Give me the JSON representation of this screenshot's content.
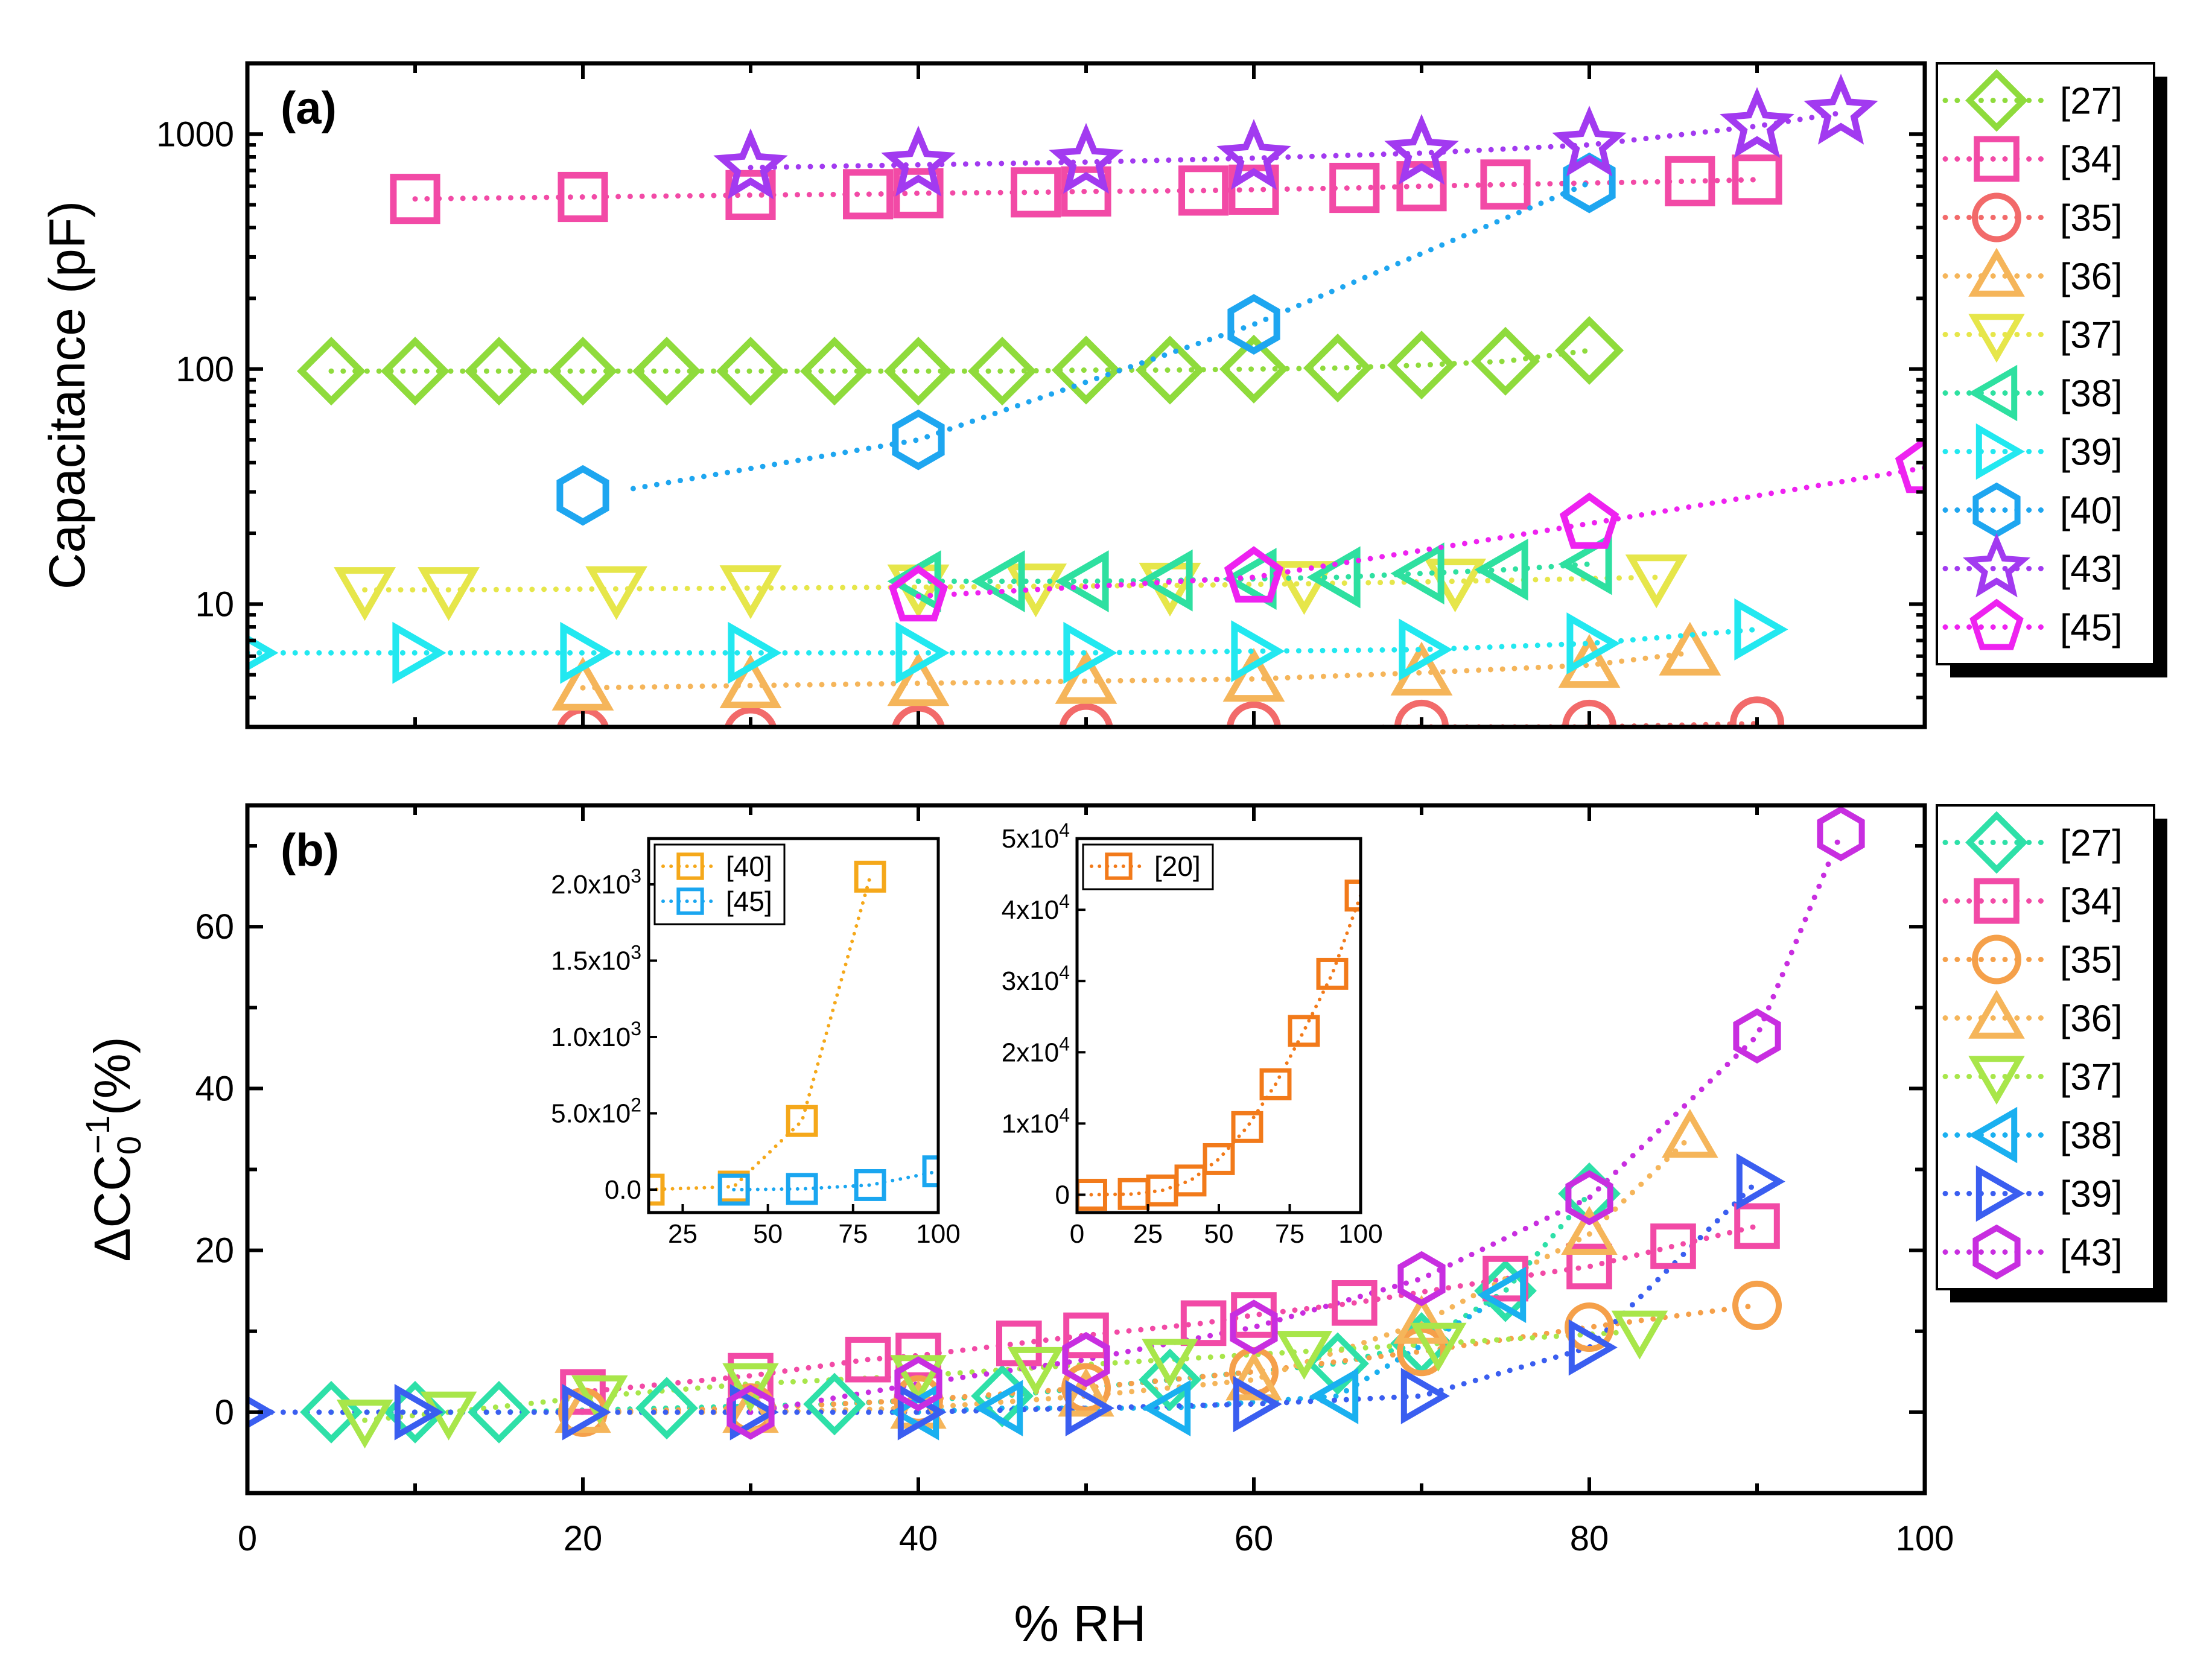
{
  "figure": {
    "xlabel": "% RH",
    "x_ticks": [
      "0",
      "20",
      "40",
      "60",
      "80",
      "100"
    ]
  },
  "chart_data": [
    {
      "type": "scatter",
      "panel": "(a)",
      "ylabel": "Capacitance (pF)",
      "yscale": "log",
      "xlim": [
        0,
        100
      ],
      "ylim": [
        3.0,
        2000
      ],
      "y_ticks": [
        {
          "value": 10,
          "label": "10"
        },
        {
          "value": 100,
          "label": "100"
        },
        {
          "value": 1000,
          "label": "1000"
        }
      ],
      "legend": [
        "[27]",
        "[34]",
        "[35]",
        "[36]",
        "[37]",
        "[38]",
        "[39]",
        "[40]",
        "[43]",
        "[45]"
      ],
      "series": [
        {
          "name": "[27]",
          "color": "#8fdb3c",
          "marker": "diamond",
          "x": [
            5,
            10,
            15,
            20,
            25,
            30,
            35,
            40,
            45,
            50,
            55,
            60,
            65,
            70,
            75,
            80
          ],
          "y": [
            98,
            98,
            98,
            98,
            98,
            98,
            98,
            98,
            98,
            99,
            99,
            100,
            101,
            104,
            108,
            120
          ]
        },
        {
          "name": "[34]",
          "color": "#f24aa6",
          "marker": "square",
          "x": [
            10,
            20,
            30,
            37,
            40,
            47,
            50,
            57,
            60,
            66,
            70,
            75,
            86,
            90
          ],
          "y": [
            530,
            540,
            550,
            555,
            560,
            565,
            570,
            575,
            580,
            590,
            600,
            610,
            630,
            640
          ]
        },
        {
          "name": "[35]",
          "color": "#f26a6a",
          "marker": "circle",
          "x": [
            20,
            30,
            40,
            50,
            60,
            70,
            80,
            90
          ],
          "y": [
            2.8,
            2.8,
            2.85,
            2.9,
            2.95,
            3.0,
            3.0,
            3.1
          ]
        },
        {
          "name": "[36]",
          "color": "#f5b55a",
          "marker": "triangle-up",
          "x": [
            20,
            30,
            40,
            50,
            60,
            70,
            80,
            86
          ],
          "y": [
            4.4,
            4.5,
            4.6,
            4.7,
            4.8,
            5.1,
            5.5,
            6.2
          ]
        },
        {
          "name": "[37]",
          "color": "#e6e64a",
          "marker": "triangle-down",
          "x": [
            7,
            12,
            22,
            30,
            40,
            47,
            55,
            63,
            72,
            84
          ],
          "y": [
            11.5,
            11.5,
            11.6,
            11.7,
            11.8,
            11.9,
            12.0,
            12.2,
            12.5,
            13.0
          ]
        },
        {
          "name": "[38]",
          "color": "#2ee0a0",
          "marker": "triangle-left",
          "x": [
            40,
            45,
            50,
            55,
            60,
            65,
            70,
            75,
            80
          ],
          "y": [
            12.5,
            12.5,
            12.5,
            12.6,
            12.8,
            13.0,
            13.5,
            14.0,
            14.8
          ]
        },
        {
          "name": "[39]",
          "color": "#22e8f0",
          "marker": "triangle-right",
          "x": [
            0,
            10,
            20,
            30,
            40,
            50,
            60,
            70,
            80,
            90
          ],
          "y": [
            6.2,
            6.2,
            6.2,
            6.2,
            6.2,
            6.2,
            6.3,
            6.4,
            6.8,
            7.8
          ]
        },
        {
          "name": "[40]",
          "color": "#1ea6f0",
          "marker": "hexagon",
          "x": [
            20,
            40,
            60,
            80
          ],
          "y": [
            29,
            50,
            155,
            620
          ]
        },
        {
          "name": "[43]",
          "color": "#a23af0",
          "marker": "star",
          "x": [
            30,
            40,
            50,
            60,
            70,
            80,
            90,
            95
          ],
          "y": [
            720,
            740,
            760,
            790,
            830,
            900,
            1080,
            1230
          ]
        },
        {
          "name": "[45]",
          "color": "#ee22f0",
          "marker": "pentagon",
          "x": [
            40,
            60,
            80,
            100
          ],
          "y": [
            10.8,
            13.0,
            22,
            38
          ]
        }
      ]
    },
    {
      "type": "scatter",
      "panel": "(b)",
      "ylabel_main": "ΔCC",
      "ylabel_sub": "0",
      "ylabel_sup": "−1",
      "ylabel_tail": "(%)",
      "xlim": [
        0,
        100
      ],
      "ylim": [
        -10,
        75
      ],
      "y_ticks": [
        {
          "value": 0,
          "label": "0"
        },
        {
          "value": 20,
          "label": "20"
        },
        {
          "value": 40,
          "label": "40"
        },
        {
          "value": 60,
          "label": "60"
        }
      ],
      "legend": [
        "[27]",
        "[34]",
        "[35]",
        "[36]",
        "[37]",
        "[38]",
        "[39]",
        "[43]"
      ],
      "series": [
        {
          "name": "[27]",
          "color": "#2ee0a8",
          "marker": "diamond",
          "x": [
            5,
            10,
            15,
            25,
            35,
            45,
            55,
            65,
            70,
            75,
            80
          ],
          "y": [
            0,
            0,
            0,
            0.5,
            1,
            2,
            4,
            6,
            8.5,
            15,
            27
          ]
        },
        {
          "name": "[34]",
          "color": "#f24aa6",
          "marker": "square",
          "x": [
            20,
            30,
            37,
            40,
            46,
            50,
            57,
            60,
            66,
            75,
            80,
            85,
            90
          ],
          "y": [
            2.5,
            4.5,
            6.5,
            7.0,
            8.5,
            9.5,
            11,
            12,
            13.5,
            16.5,
            18,
            20.5,
            23
          ]
        },
        {
          "name": "[35]",
          "color": "#f5a04a",
          "marker": "circle",
          "x": [
            20,
            30,
            40,
            50,
            60,
            70,
            80,
            90
          ],
          "y": [
            0,
            0.5,
            1.5,
            3,
            5,
            7.5,
            10.5,
            13.2
          ]
        },
        {
          "name": "[36]",
          "color": "#f5b55a",
          "marker": "triangle-up",
          "x": [
            20,
            30,
            40,
            50,
            60,
            70,
            80,
            86
          ],
          "y": [
            0,
            0,
            0.5,
            2,
            4,
            11,
            22,
            34
          ]
        },
        {
          "name": "[37]",
          "color": "#a8e64a",
          "marker": "triangle-down",
          "x": [
            7,
            12,
            21,
            30,
            40,
            47,
            55,
            63,
            71,
            83
          ],
          "y": [
            -1,
            0,
            2,
            3.5,
            4.5,
            5.5,
            6.5,
            7.5,
            8.5,
            10
          ]
        },
        {
          "name": "[38]",
          "color": "#1ab0f0",
          "marker": "triangle-left",
          "x": [
            40,
            45,
            55,
            65,
            75
          ],
          "y": [
            0,
            0.5,
            0.5,
            2,
            14.5
          ]
        },
        {
          "name": "[39]",
          "color": "#3a5ef0",
          "marker": "triangle-right",
          "x": [
            0,
            10,
            20,
            30,
            40,
            50,
            60,
            70,
            80,
            90
          ],
          "y": [
            0,
            0,
            0,
            0,
            0,
            0.5,
            1,
            2,
            8,
            28.5
          ]
        },
        {
          "name": "[43]",
          "color": "#c82ee0",
          "marker": "hexagon",
          "x": [
            30,
            40,
            50,
            60,
            70,
            80,
            90,
            95
          ],
          "y": [
            0,
            3.5,
            6.5,
            10.5,
            16.5,
            26.5,
            46.5,
            71.5
          ]
        }
      ]
    },
    {
      "type": "scatter",
      "panel": "inset-1",
      "xlim": [
        15,
        100
      ],
      "ylim": [
        -150,
        2300
      ],
      "x_ticks": [
        "25",
        "50",
        "75",
        "100"
      ],
      "y_ticks": [
        {
          "value": 0,
          "label": "0.0"
        },
        {
          "value": 500,
          "label": "5.0x10"
        },
        {
          "value": 1000,
          "label": "1.0x10"
        },
        {
          "value": 1500,
          "label": "1.5x10"
        },
        {
          "value": 2000,
          "label": "2.0x10"
        }
      ],
      "y_tick_exponents": [
        "",
        "2",
        "3",
        "3",
        "3"
      ],
      "legend": [
        "[40]",
        "[45]"
      ],
      "series": [
        {
          "name": "[40]",
          "color": "#f5a81a",
          "marker": "square",
          "x": [
            15,
            40,
            60,
            80
          ],
          "y": [
            0,
            20,
            450,
            2050
          ]
        },
        {
          "name": "[45]",
          "color": "#1aa6f0",
          "marker": "square",
          "x": [
            40,
            60,
            80,
            100
          ],
          "y": [
            0,
            5,
            30,
            120
          ]
        }
      ]
    },
    {
      "type": "scatter",
      "panel": "inset-2",
      "xlim": [
        0,
        100
      ],
      "ylim": [
        -2500,
        50000
      ],
      "x_ticks": [
        "0",
        "25",
        "50",
        "75",
        "100"
      ],
      "y_ticks": [
        {
          "value": 0,
          "label": "0"
        },
        {
          "value": 10000,
          "label": "1x10"
        },
        {
          "value": 20000,
          "label": "2x10"
        },
        {
          "value": 30000,
          "label": "3x10"
        },
        {
          "value": 40000,
          "label": "4x10"
        },
        {
          "value": 50000,
          "label": "5x10"
        }
      ],
      "y_tick_exponents": [
        "",
        "4",
        "4",
        "4",
        "4",
        "4"
      ],
      "legend": [
        "[20]"
      ],
      "series": [
        {
          "name": "[20]",
          "color": "#f27a1a",
          "marker": "square",
          "x": [
            5,
            20,
            30,
            40,
            50,
            60,
            70,
            80,
            90,
            100
          ],
          "y": [
            0,
            100,
            600,
            2000,
            5000,
            9500,
            15500,
            23000,
            31000,
            42000
          ]
        }
      ]
    }
  ]
}
